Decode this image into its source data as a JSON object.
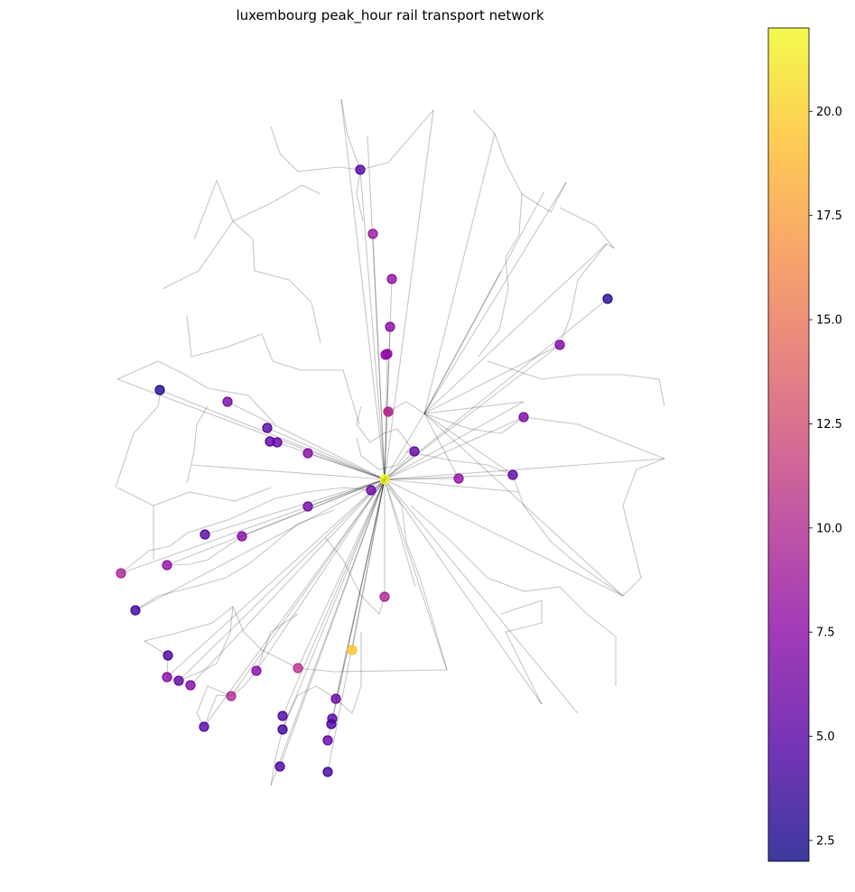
{
  "title": "luxembourg peak_hour rail transport network",
  "colormap": {
    "name": "plasma",
    "stops": [
      "#0d0887",
      "#5302a3",
      "#8b0aa5",
      "#b83289",
      "#db5c68",
      "#f48849",
      "#febd2a",
      "#f0f921"
    ],
    "alpha": 0.8,
    "range": [
      2.0,
      22.0
    ],
    "ticks": [
      {
        "value": 2.5,
        "label": "2.5"
      },
      {
        "value": 5.0,
        "label": "5.0"
      },
      {
        "value": 7.5,
        "label": "7.5"
      },
      {
        "value": 10.0,
        "label": "10.0"
      },
      {
        "value": 12.5,
        "label": "12.5"
      },
      {
        "value": 15.0,
        "label": "15.0"
      },
      {
        "value": 17.5,
        "label": "17.5"
      },
      {
        "value": 20.0,
        "label": "20.0"
      }
    ]
  },
  "chart_data": {
    "type": "scatter",
    "title": "luxembourg peak_hour rail transport network",
    "colorbar_range": [
      2.0,
      22.0
    ],
    "legend": "colorbar-right",
    "stations": [
      {
        "value": 22.0
      },
      {
        "value": 19.5
      },
      {
        "value": 9.5
      },
      {
        "value": 10.5
      },
      {
        "value": 10.0
      },
      {
        "value": 7.5
      },
      {
        "value": 7.0
      },
      {
        "value": 7.5
      },
      {
        "value": 8.0
      },
      {
        "value": 9.5
      },
      {
        "value": 5.0
      },
      {
        "value": 6.5
      },
      {
        "value": 6.0
      },
      {
        "value": 6.0
      },
      {
        "value": 5.0
      },
      {
        "value": 3.0
      },
      {
        "value": 6.5
      },
      {
        "value": 7.5
      },
      {
        "value": 8.0
      },
      {
        "value": 7.5
      },
      {
        "value": 5.5
      },
      {
        "value": 8.0
      },
      {
        "value": 5.5
      },
      {
        "value": 7.0
      },
      {
        "value": 7.0
      },
      {
        "value": 7.5
      },
      {
        "value": 8.0
      },
      {
        "value": 8.5
      },
      {
        "value": 3.0
      },
      {
        "value": 5.0
      },
      {
        "value": 8.0
      },
      {
        "value": 4.5
      },
      {
        "value": 5.5
      },
      {
        "value": 7.5
      },
      {
        "value": 4.0
      },
      {
        "value": 5.0
      },
      {
        "value": 4.5
      },
      {
        "value": 4.0
      },
      {
        "value": 4.5
      },
      {
        "value": 6.0
      },
      {
        "value": 5.0
      },
      {
        "value": 4.5
      },
      {
        "value": 5.5
      },
      {
        "value": 4.0
      },
      {
        "value": 5.0
      },
      {
        "value": 10.5
      }
    ]
  }
}
